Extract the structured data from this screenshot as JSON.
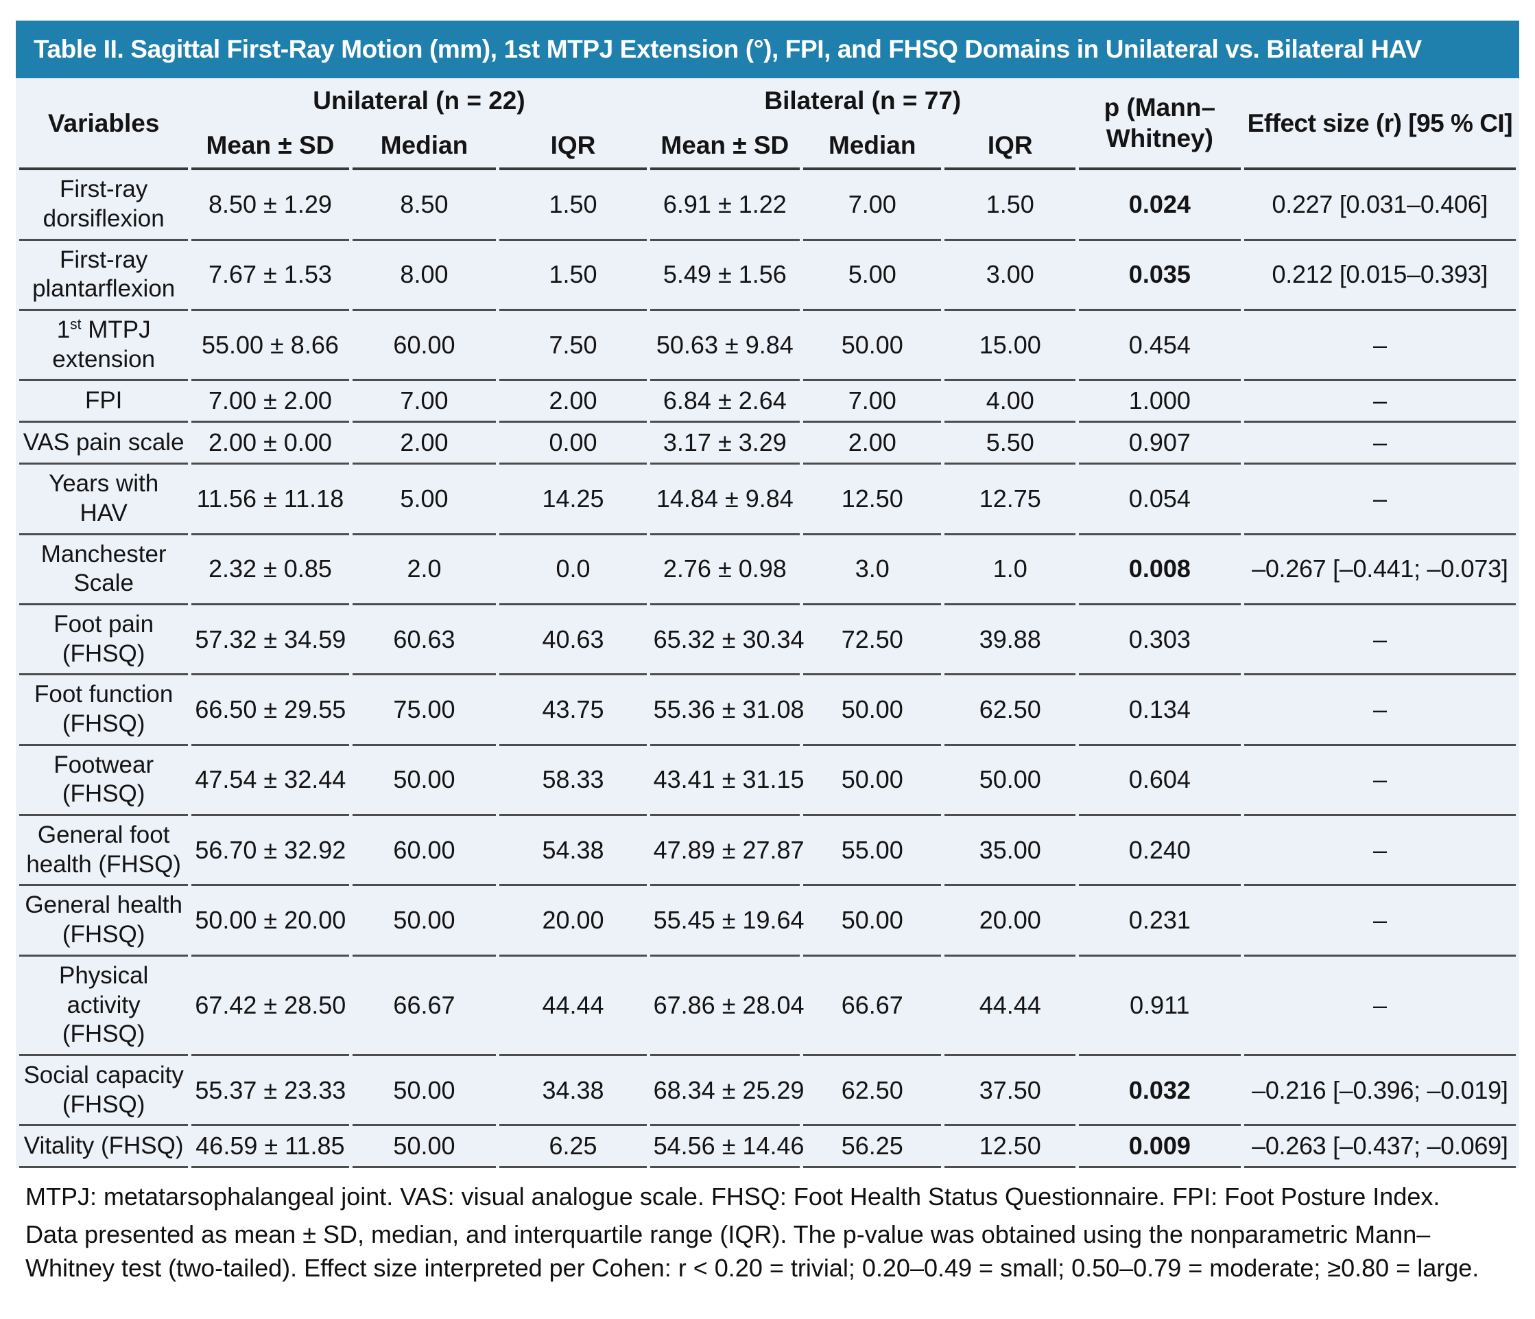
{
  "title": "Table II. Sagittal First-Ray Motion (mm), 1st MTPJ Extension (°), FPI, and FHSQ Domains in Unilateral vs. Bilateral HAV",
  "header": {
    "variables": "Variables",
    "group_unilateral": "Unilateral (n = 22)",
    "group_bilateral": "Bilateral (n = 77)",
    "sub": [
      "Mean ± SD",
      "Median",
      "IQR",
      "Mean ± SD",
      "Median",
      "IQR"
    ],
    "p_line1": "p (Mann–",
    "p_line2": "Whitney)",
    "effect_size": "Effect size (r) [95 % CI]"
  },
  "rows": [
    {
      "label": "First-ray dorsiflexion",
      "uni": [
        "8.50 ± 1.29",
        "8.50",
        "1.50"
      ],
      "bil": [
        "6.91 ± 1.22",
        "7.00",
        "1.50"
      ],
      "p": "0.024",
      "p_bold": true,
      "effect": "0.227 [0.031–0.406]"
    },
    {
      "label": "First-ray plantarflexion",
      "uni": [
        "7.67 ± 1.53",
        "8.00",
        "1.50"
      ],
      "bil": [
        "5.49 ± 1.56",
        "5.00",
        "3.00"
      ],
      "p": "0.035",
      "p_bold": true,
      "effect": "0.212 [0.015–0.393]"
    },
    {
      "label": "1st MTPJ extension",
      "label_parts": {
        "pre": "1",
        "sup": "st",
        "post": " MTPJ extension"
      },
      "uni": [
        "55.00 ± 8.66",
        "60.00",
        "7.50"
      ],
      "bil": [
        "50.63 ± 9.84",
        "50.00",
        "15.00"
      ],
      "p": "0.454",
      "p_bold": false,
      "effect": "–"
    },
    {
      "label": "FPI",
      "uni": [
        "7.00 ± 2.00",
        "7.00",
        "2.00"
      ],
      "bil": [
        "6.84 ± 2.64",
        "7.00",
        "4.00"
      ],
      "p": "1.000",
      "p_bold": false,
      "effect": "–"
    },
    {
      "label": "VAS pain scale",
      "uni": [
        "2.00 ± 0.00",
        "2.00",
        "0.00"
      ],
      "bil": [
        "3.17 ± 3.29",
        "2.00",
        "5.50"
      ],
      "p": "0.907",
      "p_bold": false,
      "effect": "–"
    },
    {
      "label": "Years with HAV",
      "uni": [
        "11.56 ± 11.18",
        "5.00",
        "14.25"
      ],
      "bil": [
        "14.84 ± 9.84",
        "12.50",
        "12.75"
      ],
      "p": "0.054",
      "p_bold": false,
      "effect": "–"
    },
    {
      "label": "Manchester Scale",
      "uni": [
        "2.32 ± 0.85",
        "2.0",
        "0.0"
      ],
      "bil": [
        "2.76 ± 0.98",
        "3.0",
        "1.0"
      ],
      "p": "0.008",
      "p_bold": true,
      "effect": "–0.267 [–0.441; –0.073]"
    },
    {
      "label": "Foot pain (FHSQ)",
      "uni": [
        "57.32 ± 34.59",
        "60.63",
        "40.63"
      ],
      "bil": [
        "65.32 ± 30.34",
        "72.50",
        "39.88"
      ],
      "p": "0.303",
      "p_bold": false,
      "effect": "–"
    },
    {
      "label": "Foot function (FHSQ)",
      "uni": [
        "66.50 ± 29.55",
        "75.00",
        "43.75"
      ],
      "bil": [
        "55.36 ± 31.08",
        "50.00",
        "62.50"
      ],
      "p": "0.134",
      "p_bold": false,
      "effect": "–"
    },
    {
      "label": "Footwear (FHSQ)",
      "uni": [
        "47.54 ± 32.44",
        "50.00",
        "58.33"
      ],
      "bil": [
        "43.41 ± 31.15",
        "50.00",
        "50.00"
      ],
      "p": "0.604",
      "p_bold": false,
      "effect": "–"
    },
    {
      "label": "General foot health (FHSQ)",
      "uni": [
        "56.70 ± 32.92",
        "60.00",
        "54.38"
      ],
      "bil": [
        "47.89 ± 27.87",
        "55.00",
        "35.00"
      ],
      "p": "0.240",
      "p_bold": false,
      "effect": "–"
    },
    {
      "label": "General health (FHSQ)",
      "uni": [
        "50.00 ± 20.00",
        "50.00",
        "20.00"
      ],
      "bil": [
        "55.45 ± 19.64",
        "50.00",
        "20.00"
      ],
      "p": "0.231",
      "p_bold": false,
      "effect": "–"
    },
    {
      "label": "Physical activity (FHSQ)",
      "uni": [
        "67.42 ± 28.50",
        "66.67",
        "44.44"
      ],
      "bil": [
        "67.86 ± 28.04",
        "66.67",
        "44.44"
      ],
      "p": "0.911",
      "p_bold": false,
      "effect": "–"
    },
    {
      "label": "Social capacity (FHSQ)",
      "uni": [
        "55.37 ± 23.33",
        "50.00",
        "34.38"
      ],
      "bil": [
        "68.34 ± 25.29",
        "62.50",
        "37.50"
      ],
      "p": "0.032",
      "p_bold": true,
      "effect": "–0.216 [–0.396; –0.019]"
    },
    {
      "label": "Vitality (FHSQ)",
      "uni": [
        "46.59 ± 11.85",
        "50.00",
        "6.25"
      ],
      "bil": [
        "54.56 ± 14.46",
        "56.25",
        "12.50"
      ],
      "p": "0.009",
      "p_bold": true,
      "effect": "–0.263 [–0.437; –0.069]"
    }
  ],
  "footnotes": [
    "MTPJ: metatarsophalangeal joint. VAS: visual analogue scale. FHSQ: Foot Health Status Questionnaire. FPI: Foot Posture Index.",
    "Data presented as mean ± SD, median, and interquartile range (IQR). The p-value was obtained using the nonparametric Mann–Whitney test (two-tailed). Effect size interpreted per Cohen: r < 0.20 = trivial; 0.20–0.49 = small; 0.50–0.79 = moderate; ≥0.80 = large."
  ],
  "colors": {
    "title_bar_bg": "#1f7fad",
    "title_text": "#ffffff",
    "table_bg": "#edf1f8",
    "rule": "#4d4d4d",
    "text": "#141414"
  }
}
